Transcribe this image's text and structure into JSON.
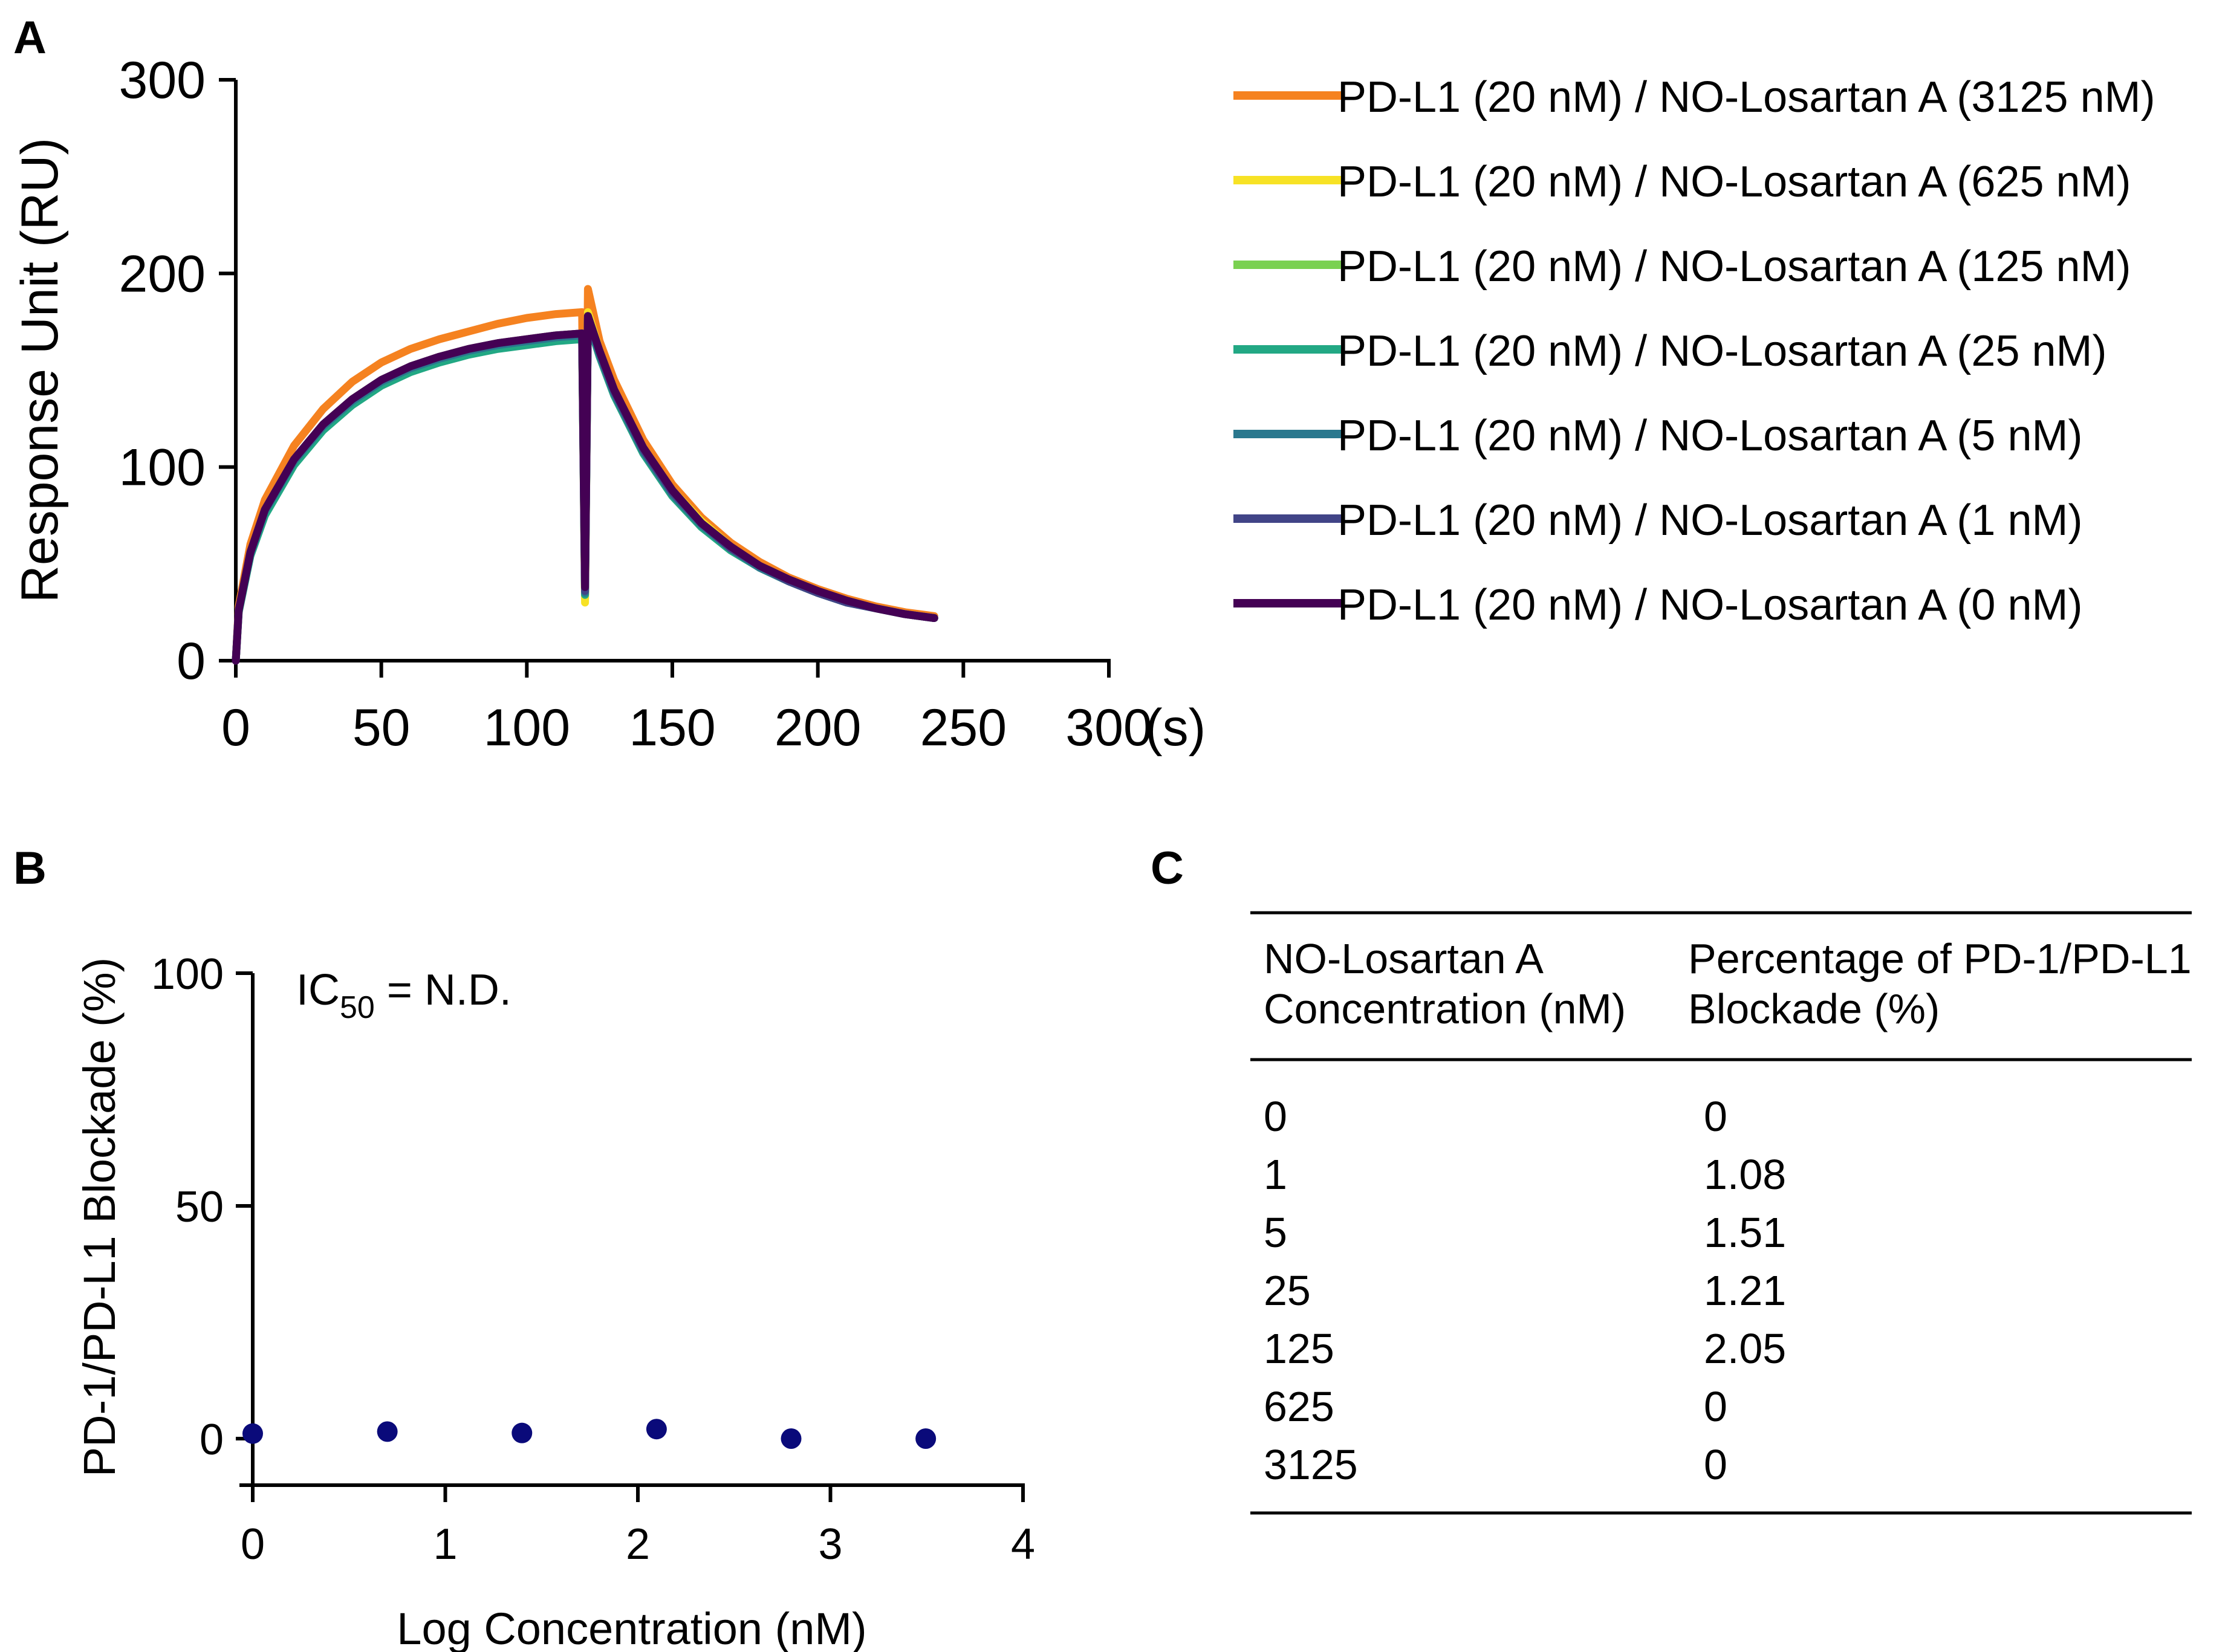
{
  "panel_labels": {
    "a": "A",
    "b": "B",
    "c": "C"
  },
  "chart_data": [
    {
      "id": "A",
      "type": "line",
      "xlabel": "(s)",
      "ylabel": "Response Unit (RU)",
      "xlim": [
        0,
        300
      ],
      "ylim": [
        0,
        300
      ],
      "xticks": [
        0,
        50,
        100,
        150,
        200,
        250,
        300
      ],
      "yticks": [
        0,
        100,
        200,
        300
      ],
      "grid": false,
      "legend_position": "right",
      "series": [
        {
          "name": "PD-L1 (20 nM) / NO-Losartan A (3125 nM)",
          "color": "#f58220",
          "x": [
            0,
            1,
            5,
            10,
            20,
            30,
            40,
            50,
            60,
            70,
            80,
            90,
            100,
            110,
            119,
            120,
            121,
            125,
            130,
            140,
            150,
            160,
            170,
            180,
            190,
            200,
            210,
            220,
            230,
            240
          ],
          "y": [
            0,
            28,
            60,
            83,
            111,
            130,
            144,
            154,
            161,
            166,
            170,
            174,
            177,
            179,
            180,
            32,
            192,
            165,
            145,
            114,
            91,
            74,
            61,
            51,
            43,
            37,
            32,
            28,
            25,
            23
          ]
        },
        {
          "name": "PD-L1 (20 nM) / NO-Losartan A (625 nM)",
          "color": "#f7e225",
          "x": [
            0,
            1,
            5,
            10,
            20,
            30,
            40,
            50,
            60,
            70,
            80,
            90,
            100,
            110,
            119,
            120,
            121,
            125,
            130,
            140,
            150,
            160,
            170,
            180,
            190,
            200,
            210,
            220,
            230,
            240
          ],
          "y": [
            0,
            26,
            56,
            78,
            104,
            122,
            135,
            145,
            152,
            157,
            161,
            164,
            166,
            168,
            169,
            30,
            180,
            160,
            140,
            110,
            88,
            72,
            59,
            49,
            42,
            36,
            31,
            27,
            24,
            22
          ]
        },
        {
          "name": "PD-L1 (20 nM) / NO-Losartan A (125 nM)",
          "color": "#7ad151",
          "x": [
            0,
            1,
            5,
            10,
            20,
            30,
            40,
            50,
            60,
            70,
            80,
            90,
            100,
            110,
            119,
            120,
            121,
            125,
            130,
            140,
            150,
            160,
            170,
            180,
            190,
            200,
            210,
            220,
            230,
            240
          ],
          "y": [
            0,
            25,
            55,
            76,
            102,
            120,
            133,
            143,
            150,
            155,
            159,
            162,
            164,
            166,
            167,
            34,
            176,
            158,
            138,
            108,
            86,
            70,
            58,
            48,
            41,
            35,
            30,
            27,
            24,
            22
          ]
        },
        {
          "name": "PD-L1 (20 nM) / NO-Losartan A (25 nM)",
          "color": "#22a884",
          "x": [
            0,
            1,
            5,
            10,
            20,
            30,
            40,
            50,
            60,
            70,
            80,
            90,
            100,
            110,
            119,
            120,
            121,
            125,
            130,
            140,
            150,
            160,
            170,
            180,
            190,
            200,
            210,
            220,
            230,
            240
          ],
          "y": [
            0,
            25,
            54,
            75,
            101,
            119,
            132,
            142,
            149,
            154,
            158,
            161,
            163,
            165,
            166,
            34,
            176,
            157,
            137,
            107,
            85,
            69,
            57,
            48,
            41,
            35,
            30,
            27,
            24,
            22
          ]
        },
        {
          "name": "PD-L1 (20 nM) / NO-Losartan A (5 nM)",
          "color": "#2a788e",
          "x": [
            0,
            1,
            5,
            10,
            20,
            30,
            40,
            50,
            60,
            70,
            80,
            90,
            100,
            110,
            119,
            120,
            121,
            125,
            130,
            140,
            150,
            160,
            170,
            180,
            190,
            200,
            210,
            220,
            230,
            240
          ],
          "y": [
            0,
            26,
            55,
            77,
            103,
            121,
            134,
            144,
            151,
            156,
            160,
            163,
            165,
            167,
            168,
            35,
            177,
            158,
            138,
            108,
            86,
            70,
            58,
            48,
            41,
            35,
            30,
            27,
            24,
            22
          ]
        },
        {
          "name": "PD-L1 (20 nM) / NO-Losartan A (1 nM)",
          "color": "#414487",
          "x": [
            0,
            1,
            5,
            10,
            20,
            30,
            40,
            50,
            60,
            70,
            80,
            90,
            100,
            110,
            119,
            120,
            121,
            125,
            130,
            140,
            150,
            160,
            170,
            180,
            190,
            200,
            210,
            220,
            230,
            240
          ],
          "y": [
            0,
            26,
            56,
            78,
            104,
            122,
            135,
            145,
            152,
            157,
            161,
            164,
            166,
            168,
            169,
            36,
            178,
            159,
            139,
            109,
            87,
            71,
            58,
            49,
            41,
            35,
            30,
            27,
            24,
            22
          ]
        },
        {
          "name": "PD-L1 (20 nM) / NO-Losartan A (0 nM)",
          "color": "#440154",
          "x": [
            0,
            1,
            5,
            10,
            20,
            30,
            40,
            50,
            60,
            70,
            80,
            90,
            100,
            110,
            119,
            120,
            121,
            125,
            130,
            140,
            150,
            160,
            170,
            180,
            190,
            200,
            210,
            220,
            230,
            240
          ],
          "y": [
            0,
            26,
            56,
            78,
            104,
            122,
            135,
            145,
            152,
            157,
            161,
            164,
            166,
            168,
            169,
            38,
            178,
            160,
            140,
            110,
            88,
            71,
            59,
            49,
            42,
            36,
            31,
            27,
            24,
            22
          ]
        }
      ]
    },
    {
      "id": "B",
      "type": "scatter",
      "xlabel": "Log Concentration (nM)",
      "ylabel": "PD-1/PD-L1 Blockade (%)",
      "xlim": [
        0,
        4
      ],
      "ylim": [
        -10,
        100
      ],
      "xticks": [
        0,
        1,
        2,
        3,
        4
      ],
      "yticks": [
        0,
        50,
        100
      ],
      "grid": false,
      "annotation": {
        "prefix": "IC",
        "sub": "50",
        "suffix": " = N.D."
      },
      "point_color": "#0a0a7a",
      "x": [
        0,
        0.699,
        1.398,
        2.097,
        2.796,
        3.495
      ],
      "y": [
        1.08,
        1.51,
        1.21,
        2.05,
        0,
        0
      ]
    },
    {
      "id": "C",
      "type": "table",
      "columns": [
        {
          "line1": "NO-Losartan A",
          "line2": "Concentration (nM)"
        },
        {
          "line1": "Percentage of PD-1/PD-L1",
          "line2": "Blockade (%)"
        }
      ],
      "rows": [
        [
          "0",
          "0"
        ],
        [
          "1",
          "1.08"
        ],
        [
          "5",
          "1.51"
        ],
        [
          "25",
          "1.21"
        ],
        [
          "125",
          "2.05"
        ],
        [
          "625",
          "0"
        ],
        [
          "3125",
          "0"
        ]
      ]
    }
  ]
}
